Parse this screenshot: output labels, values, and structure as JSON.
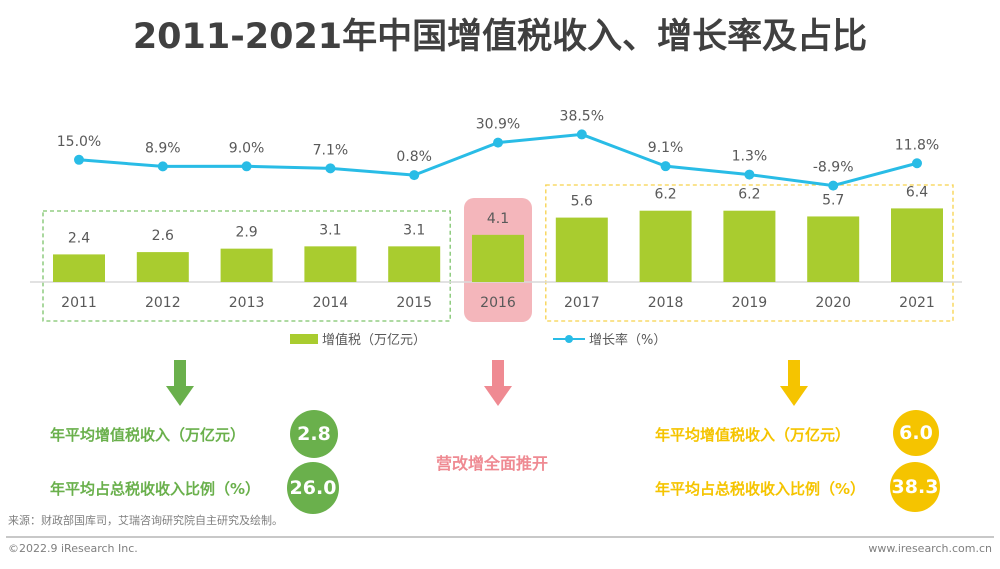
{
  "title": "2011-2021年中国增值税收入、增长率及占比",
  "chart_data": {
    "type": "bar+line",
    "title": "2011-2021年中国增值税收入、增长率及占比",
    "categories": [
      "2011",
      "2012",
      "2013",
      "2014",
      "2015",
      "2016",
      "2017",
      "2018",
      "2019",
      "2020",
      "2021"
    ],
    "series": [
      {
        "name": "增值税（万亿元）",
        "type": "bar",
        "values": [
          2.4,
          2.6,
          2.9,
          3.1,
          3.1,
          4.1,
          5.6,
          6.2,
          6.2,
          5.7,
          6.4
        ],
        "labels": [
          "2.4",
          "2.6",
          "2.9",
          "3.1",
          "3.1",
          "4.1",
          "5.6",
          "6.2",
          "6.2",
          "5.7",
          "6.4"
        ],
        "color": "#a9cc2f"
      },
      {
        "name": "增长率（%）",
        "type": "line",
        "values": [
          15.0,
          8.9,
          9.0,
          7.1,
          0.8,
          30.9,
          38.5,
          9.1,
          1.3,
          -8.9,
          11.8
        ],
        "labels": [
          "15.0%",
          "8.9%",
          "9.0%",
          "7.1%",
          "0.8%",
          "30.9%",
          "38.5%",
          "9.1%",
          "1.3%",
          "-8.9%",
          "11.8%"
        ],
        "color": "#29bce6"
      }
    ],
    "legend": "bottom",
    "grid": false,
    "highlight_groups": [
      {
        "years": [
          "2011",
          "2015"
        ],
        "style": "dashed",
        "color": "#7dc36b"
      },
      {
        "years": [
          "2016",
          "2016"
        ],
        "style": "filled",
        "color": "#f4b6bb"
      },
      {
        "years": [
          "2017",
          "2021"
        ],
        "style": "dashed",
        "color": "#f7d24a"
      }
    ]
  },
  "legend": {
    "bar_label": "增值税（万亿元）",
    "line_label": "增长率（%）"
  },
  "summary": {
    "left": {
      "color": "#6ab04c",
      "avg_income_label": "年平均增值税收入（万亿元）",
      "avg_income_value": "2.8",
      "avg_share_label": "年平均占总税收收入比例（%）",
      "avg_share_value": "26.0"
    },
    "middle": {
      "color": "#ef8a92",
      "text": "营改增全面推开"
    },
    "right": {
      "color": "#f5c400",
      "avg_income_label": "年平均增值税收入（万亿元）",
      "avg_income_value": "6.0",
      "avg_share_label": "年平均占总税收收入比例（%）",
      "avg_share_value": "38.3"
    }
  },
  "source": "来源：财政部国库司，艾瑞咨询研究院自主研究及绘制。",
  "footer": {
    "copyright": "©2022.9 iResearch Inc.",
    "website": "www.iresearch.com.cn"
  }
}
